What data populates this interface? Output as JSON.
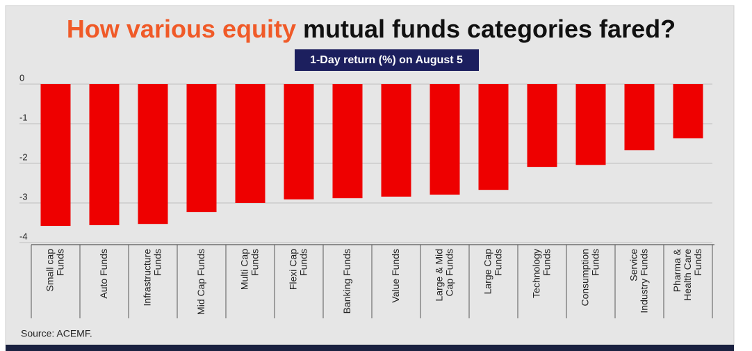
{
  "chart_data": {
    "type": "bar",
    "title": [
      {
        "text": "How various equity",
        "color": "#f05a28"
      },
      {
        "text": "mutual funds categories fared?",
        "color": "#111111"
      }
    ],
    "subtitle": "1-Day return (%) on August 5",
    "categories": [
      "Small cap\nFunds",
      "Auto Funds",
      "Infrastructure\nFunds",
      "Mid Cap Funds",
      "Multi Cap\nFunds",
      "Flexi Cap\nFunds",
      "Banking Funds",
      "Value Funds",
      "Large & Mid\nCap Funds",
      "Large Cap\nFunds",
      "Technology\nFunds",
      "Consumption\nFunds",
      "Service\nIndustry Funds",
      "Pharma &\nHealth Care\nFunds"
    ],
    "values": [
      -3.58,
      -3.56,
      -3.53,
      -3.23,
      -3.0,
      -2.91,
      -2.88,
      -2.84,
      -2.79,
      -2.67,
      -2.09,
      -2.04,
      -1.67,
      -1.37
    ],
    "color": "#ee0000",
    "ylim": [
      -4,
      0
    ],
    "yticks": [
      0,
      -1,
      -2,
      -3,
      -4
    ],
    "grid": true,
    "source": "Source: ACEMF."
  }
}
